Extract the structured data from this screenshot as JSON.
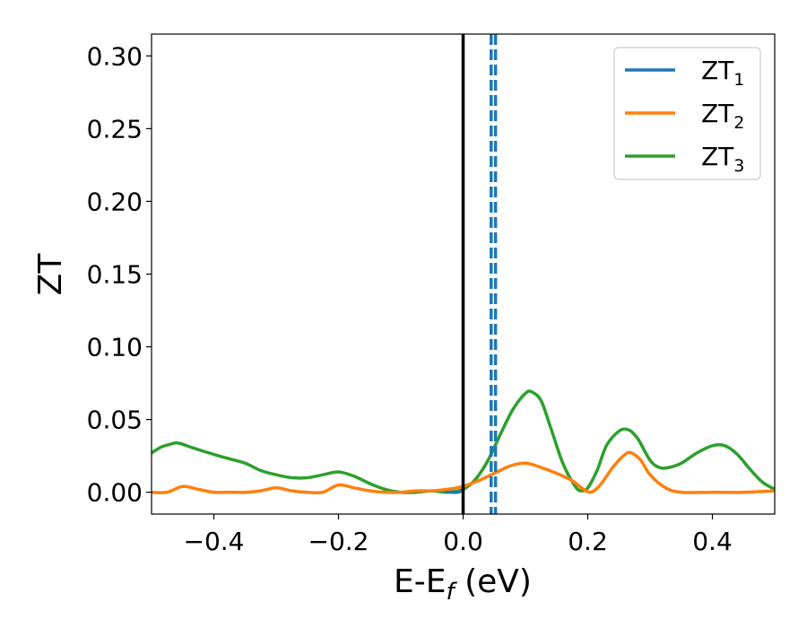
{
  "chart_data": {
    "type": "line",
    "xlabel": "E-E",
    "xlabel_sub": "f",
    "xlabel_unit": " (eV)",
    "ylabel": "ZT",
    "xlim": [
      -0.5,
      0.5
    ],
    "ylim": [
      -0.015,
      0.315
    ],
    "xticks": [
      -0.4,
      -0.2,
      0.0,
      0.2,
      0.4
    ],
    "xtick_labels": [
      "−0.4",
      "−0.2",
      "0.0",
      "0.2",
      "0.4"
    ],
    "yticks": [
      0.0,
      0.05,
      0.1,
      0.15,
      0.2,
      0.25,
      0.3
    ],
    "ytick_labels": [
      "0.00",
      "0.05",
      "0.10",
      "0.15",
      "0.20",
      "0.25",
      "0.30"
    ],
    "grid": false,
    "legend_position": "top-right",
    "fermi_line_x": 0.0,
    "dashed_lines_x": [
      0.045,
      0.052
    ],
    "series": [
      {
        "name": "ZT",
        "name_sub": "1",
        "color": "#1f77b4",
        "x": [
          -0.03,
          -0.02,
          -0.01,
          0.0
        ],
        "y": [
          0.001,
          0.0,
          0.0,
          0.001
        ]
      },
      {
        "name": "ZT",
        "name_sub": "2",
        "color": "#ff7f0e",
        "x": [
          -0.5,
          -0.475,
          -0.45,
          -0.425,
          -0.4,
          -0.375,
          -0.35,
          -0.325,
          -0.3,
          -0.275,
          -0.25,
          -0.225,
          -0.2,
          -0.175,
          -0.15,
          -0.125,
          -0.1,
          -0.075,
          -0.05,
          -0.025,
          0.0,
          0.025,
          0.05,
          0.075,
          0.1,
          0.125,
          0.15,
          0.175,
          0.19,
          0.205,
          0.22,
          0.24,
          0.26,
          0.27,
          0.285,
          0.3,
          0.325,
          0.35,
          0.4,
          0.45,
          0.5
        ],
        "y": [
          0.0,
          0.0,
          0.004,
          0.002,
          0.0,
          0.0,
          0.0,
          0.001,
          0.003,
          0.001,
          0.0,
          0.0,
          0.005,
          0.003,
          0.001,
          0.0,
          0.0,
          0.001,
          0.001,
          0.002,
          0.004,
          0.008,
          0.013,
          0.018,
          0.02,
          0.017,
          0.013,
          0.008,
          0.003,
          0.0,
          0.005,
          0.017,
          0.026,
          0.027,
          0.022,
          0.012,
          0.003,
          0.0,
          0.0,
          0.0,
          0.001
        ]
      },
      {
        "name": "ZT",
        "name_sub": "3",
        "color": "#2ca02c",
        "x": [
          -0.5,
          -0.485,
          -0.47,
          -0.46,
          -0.45,
          -0.43,
          -0.4,
          -0.375,
          -0.35,
          -0.325,
          -0.3,
          -0.275,
          -0.25,
          -0.225,
          -0.2,
          -0.175,
          -0.15,
          -0.125,
          -0.1,
          -0.075,
          -0.05,
          -0.025,
          0.0,
          0.02,
          0.04,
          0.06,
          0.08,
          0.1,
          0.11,
          0.125,
          0.14,
          0.16,
          0.18,
          0.19,
          0.2,
          0.215,
          0.23,
          0.25,
          0.265,
          0.28,
          0.3,
          0.315,
          0.33,
          0.35,
          0.375,
          0.4,
          0.42,
          0.44,
          0.46,
          0.48,
          0.5
        ],
        "y": [
          0.027,
          0.031,
          0.033,
          0.034,
          0.033,
          0.03,
          0.026,
          0.023,
          0.02,
          0.015,
          0.012,
          0.01,
          0.01,
          0.012,
          0.014,
          0.011,
          0.006,
          0.002,
          0.0,
          0.0,
          0.001,
          0.0,
          0.002,
          0.009,
          0.022,
          0.04,
          0.057,
          0.068,
          0.069,
          0.063,
          0.045,
          0.02,
          0.004,
          0.001,
          0.003,
          0.015,
          0.032,
          0.042,
          0.043,
          0.037,
          0.022,
          0.017,
          0.017,
          0.02,
          0.027,
          0.032,
          0.032,
          0.026,
          0.016,
          0.007,
          0.002
        ]
      }
    ]
  }
}
